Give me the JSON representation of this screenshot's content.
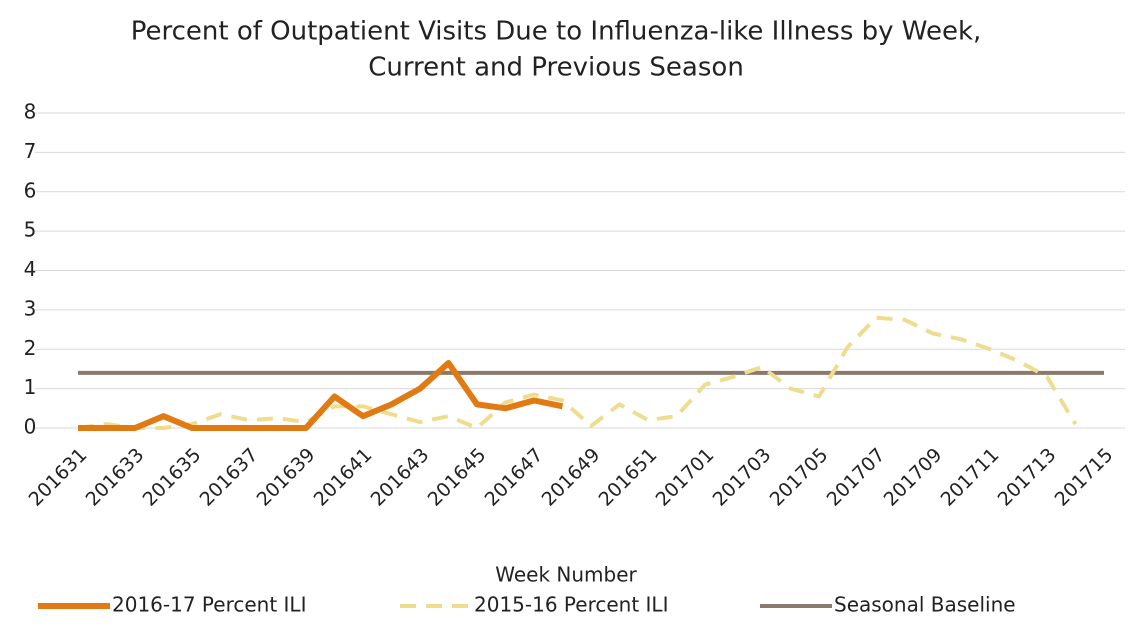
{
  "chart_data": {
    "type": "line",
    "title": [
      "Percent of Outpatient Visits Due to Influenza-like Illness by Week,",
      "Current and Previous Season"
    ],
    "x_label": "Week Number",
    "categories": [
      "201631",
      null,
      "201633",
      null,
      "201635",
      null,
      "201637",
      null,
      "201639",
      null,
      "201641",
      null,
      "201643",
      null,
      "201645",
      null,
      "201647",
      null,
      "201649",
      null,
      "201651",
      null,
      "201701",
      null,
      "201703",
      null,
      "201705",
      null,
      "201707",
      null,
      "201709",
      null,
      "201711",
      null,
      "201713",
      null,
      "201715"
    ],
    "series": [
      {
        "name": "2016-17 Percent ILI",
        "color": "#e17a12",
        "dash": false,
        "values": [
          0,
          0,
          0,
          0.3,
          0,
          0,
          0,
          0,
          0,
          0.8,
          0.3,
          0.6,
          1.0,
          1.65,
          0.6,
          0.5,
          0.7,
          0.55,
          null,
          null,
          null,
          null,
          null,
          null,
          null,
          null,
          null,
          null,
          null,
          null,
          null,
          null,
          null,
          null,
          null,
          null,
          null
        ]
      },
      {
        "name": "2015-16 Percent ILI",
        "color": "#f0dc8e",
        "dash": true,
        "values": [
          0,
          0.1,
          0,
          0,
          0.1,
          0.35,
          0.2,
          0.25,
          0.15,
          0.55,
          0.55,
          0.35,
          0.15,
          0.3,
          0,
          0.65,
          0.85,
          0.7,
          0.05,
          0.6,
          0.2,
          0.3,
          1.1,
          1.3,
          1.55,
          1.0,
          0.8,
          2.05,
          2.8,
          2.75,
          2.4,
          2.25,
          2.0,
          1.7,
          1.3,
          0.1,
          null
        ]
      },
      {
        "name": "Seasonal Baseline",
        "color": "#8a7a6c",
        "dash": false,
        "values": [
          1.4,
          1.4,
          1.4,
          1.4,
          1.4,
          1.4,
          1.4,
          1.4,
          1.4,
          1.4,
          1.4,
          1.4,
          1.4,
          1.4,
          1.4,
          1.4,
          1.4,
          1.4,
          1.4,
          1.4,
          1.4,
          1.4,
          1.4,
          1.4,
          1.4,
          1.4,
          1.4,
          1.4,
          1.4,
          1.4,
          1.4,
          1.4,
          1.4,
          1.4,
          1.4,
          1.4,
          1.4
        ]
      }
    ],
    "ylim": [
      0,
      8
    ],
    "yticks": [
      0,
      1,
      2,
      3,
      4,
      5,
      6,
      7,
      8
    ],
    "grid": true,
    "legend": "bottom"
  }
}
